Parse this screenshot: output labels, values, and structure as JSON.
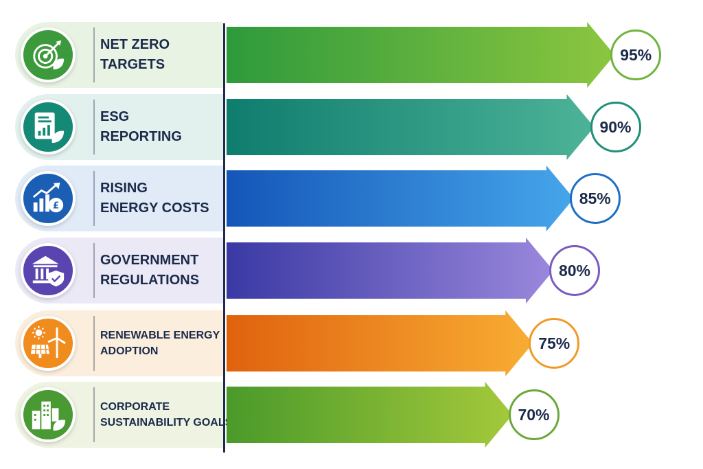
{
  "chart_data": {
    "type": "bar",
    "orientation": "horizontal",
    "categories": [
      "NET ZERO TARGETS",
      "ESG REPORTING",
      "RISING ENERGY COSTS",
      "GOVERNMENT REGULATIONS",
      "RENEWABLE ENERGY ADOPTION",
      "CORPORATE SUSTAINABILITY GOALS"
    ],
    "values": [
      95,
      90,
      85,
      80,
      75,
      70
    ],
    "value_labels": [
      "95%",
      "90%",
      "85%",
      "80%",
      "75%",
      "70%"
    ],
    "label_lines": [
      [
        "NET ZERO",
        "TARGETS"
      ],
      [
        "ESG",
        "REPORTING"
      ],
      [
        "RISING",
        "ENERGY COSTS"
      ],
      [
        "GOVERNMENT",
        "REGULATIONS"
      ],
      [
        "RENEWABLE ENERGY",
        "ADOPTION"
      ],
      [
        "CORPORATE",
        "SUSTAINABILITY GOALS"
      ]
    ],
    "icons": [
      "target-leaf-icon",
      "report-chart-leaf-icon",
      "rising-chart-pound-icon",
      "government-building-shield-icon",
      "solar-wind-icon",
      "city-buildings-leaf-icon"
    ],
    "colors": [
      {
        "start": "#2e9a3c",
        "end": "#8cc63f",
        "panel": "#e8f3e4",
        "icon": "#3c9a3c",
        "badge": "#6fb43f"
      },
      {
        "start": "#0f7d6e",
        "end": "#4db398",
        "panel": "#e2f0ee",
        "icon": "#148a76",
        "badge": "#1f8f78"
      },
      {
        "start": "#1456b8",
        "end": "#46a6ea",
        "panel": "#e1ebf7",
        "icon": "#1b5fb4",
        "badge": "#1d6fc4"
      },
      {
        "start": "#3a39a4",
        "end": "#9a88dc",
        "panel": "#ebe9f6",
        "icon": "#5a45b0",
        "badge": "#7a5bc4"
      },
      {
        "start": "#e0620e",
        "end": "#f8ad33",
        "panel": "#fbeedd",
        "icon": "#f08c1e",
        "badge": "#f09a24"
      },
      {
        "start": "#4a9a2a",
        "end": "#a4c93b",
        "panel": "#eef3e2",
        "icon": "#4a9a34",
        "badge": "#6aa83a"
      }
    ],
    "grid": false,
    "legend": "none"
  }
}
